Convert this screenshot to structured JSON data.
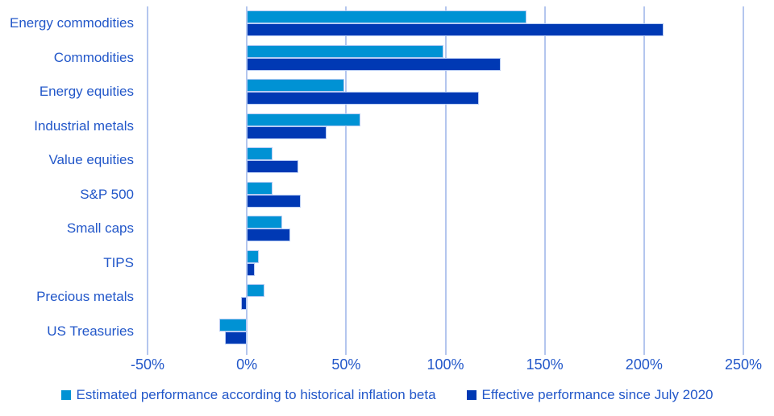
{
  "chart_data": {
    "type": "bar",
    "orientation": "horizontal",
    "title": "",
    "xlabel": "",
    "ylabel": "",
    "xlim": [
      -50,
      250
    ],
    "grid": "vertical",
    "legend_position": "bottom",
    "categories": [
      "Energy commodities",
      "Commodities",
      "Energy equities",
      "Industrial metals",
      "Value equities",
      "S&P 500",
      "Small caps",
      "TIPS",
      "Precious metals",
      "US Treasuries"
    ],
    "series": [
      {
        "name": "Estimated performance according to historical inflation beta",
        "color": "#0092D4",
        "values": [
          141,
          99,
          49,
          57,
          13,
          13,
          18,
          6,
          9,
          -14
        ]
      },
      {
        "name": "Effective performance since July 2020",
        "color": "#0039B4",
        "values": [
          210,
          128,
          117,
          40,
          26,
          27,
          22,
          4,
          -3,
          -11
        ]
      }
    ],
    "x_tick_values": [
      -50,
      0,
      50,
      100,
      150,
      200,
      250
    ],
    "x_tick_labels": [
      "-50%",
      "0%",
      "50%",
      "100%",
      "150%",
      "200%",
      "250%"
    ]
  },
  "colors": {
    "text_blue": "#2257C9",
    "gridline": "#B4C6EE",
    "bar_border": "#B7CCF4",
    "background": "#FFFFFF"
  }
}
